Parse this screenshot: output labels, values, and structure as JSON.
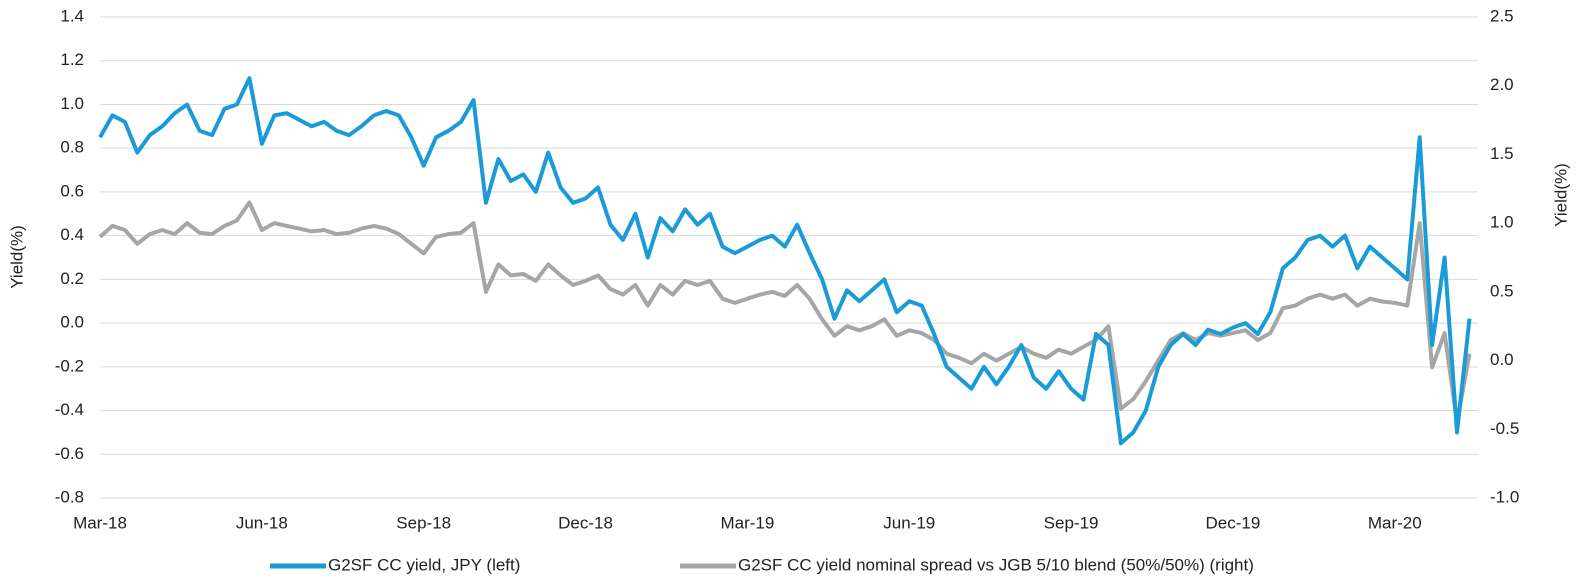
{
  "chart_data": {
    "type": "line",
    "y_label": "Yield(%)",
    "y2_label": "Yield(%)",
    "categories": [
      "Mar-18",
      null,
      null,
      null,
      null,
      null,
      null,
      null,
      null,
      null,
      null,
      null,
      null,
      "Jun-18",
      null,
      null,
      null,
      null,
      null,
      null,
      null,
      null,
      null,
      null,
      null,
      null,
      "Sep-18",
      null,
      null,
      null,
      null,
      null,
      null,
      null,
      null,
      null,
      null,
      null,
      null,
      "Dec-18",
      null,
      null,
      null,
      null,
      null,
      null,
      null,
      null,
      null,
      null,
      null,
      null,
      "Mar-19",
      null,
      null,
      null,
      null,
      null,
      null,
      null,
      null,
      null,
      null,
      null,
      null,
      "Jun-19",
      null,
      null,
      null,
      null,
      null,
      null,
      null,
      null,
      null,
      null,
      null,
      null,
      "Sep-19",
      null,
      null,
      null,
      null,
      null,
      null,
      null,
      null,
      null,
      null,
      null,
      null,
      "Dec-19",
      null,
      null,
      null,
      null,
      null,
      null,
      null,
      null,
      null,
      null,
      null,
      null,
      "Mar-20",
      null,
      null,
      null,
      null,
      null,
      null
    ],
    "series": [
      {
        "name": "G2SF CC yield, JPY (left)",
        "color": "#1a9bd7",
        "axis": "y",
        "values": [
          0.85,
          0.95,
          0.92,
          0.78,
          0.86,
          0.9,
          0.96,
          1.0,
          0.88,
          0.86,
          0.98,
          1.0,
          1.12,
          0.82,
          0.95,
          0.96,
          0.93,
          0.9,
          0.92,
          0.88,
          0.86,
          0.9,
          0.95,
          0.97,
          0.95,
          0.85,
          0.72,
          0.85,
          0.88,
          0.92,
          1.02,
          0.55,
          0.75,
          0.65,
          0.68,
          0.6,
          0.78,
          0.62,
          0.55,
          0.57,
          0.62,
          0.45,
          0.38,
          0.5,
          0.3,
          0.48,
          0.42,
          0.52,
          0.45,
          0.5,
          0.35,
          0.32,
          0.35,
          0.38,
          0.4,
          0.35,
          0.45,
          0.32,
          0.2,
          0.02,
          0.15,
          0.1,
          0.15,
          0.2,
          0.05,
          0.1,
          0.08,
          -0.05,
          -0.2,
          -0.25,
          -0.3,
          -0.2,
          -0.28,
          -0.2,
          -0.1,
          -0.25,
          -0.3,
          -0.22,
          -0.3,
          -0.35,
          -0.05,
          -0.1,
          -0.55,
          -0.5,
          -0.4,
          -0.2,
          -0.1,
          -0.05,
          -0.1,
          -0.03,
          -0.05,
          -0.02,
          0.0,
          -0.05,
          0.05,
          0.25,
          0.3,
          0.38,
          0.4,
          0.35,
          0.4,
          0.25,
          0.35,
          0.3,
          0.25,
          0.2,
          0.85,
          -0.1,
          0.3,
          -0.5,
          0.02
        ]
      },
      {
        "name": "G2SF CC yield nominal spread vs JGB 5/10 blend (50%/50%) (right)",
        "color": "#a6a6a6",
        "axis": "y2",
        "values": [
          0.9,
          0.98,
          0.95,
          0.85,
          0.92,
          0.95,
          0.92,
          1.0,
          0.93,
          0.92,
          0.98,
          1.02,
          1.15,
          0.95,
          1.0,
          0.98,
          0.96,
          0.94,
          0.95,
          0.92,
          0.93,
          0.96,
          0.98,
          0.96,
          0.92,
          0.85,
          0.78,
          0.9,
          0.92,
          0.93,
          1.0,
          0.5,
          0.7,
          0.62,
          0.63,
          0.58,
          0.7,
          0.62,
          0.55,
          0.58,
          0.62,
          0.52,
          0.48,
          0.55,
          0.4,
          0.55,
          0.48,
          0.58,
          0.55,
          0.58,
          0.45,
          0.42,
          0.45,
          0.48,
          0.5,
          0.47,
          0.55,
          0.45,
          0.3,
          0.18,
          0.25,
          0.22,
          0.25,
          0.3,
          0.18,
          0.22,
          0.2,
          0.15,
          0.05,
          0.02,
          -0.02,
          0.05,
          0.0,
          0.05,
          0.1,
          0.05,
          0.02,
          0.08,
          0.05,
          0.1,
          0.15,
          0.25,
          -0.35,
          -0.28,
          -0.15,
          0.0,
          0.15,
          0.2,
          0.15,
          0.2,
          0.18,
          0.2,
          0.22,
          0.15,
          0.2,
          0.38,
          0.4,
          0.45,
          0.48,
          0.45,
          0.48,
          0.4,
          0.45,
          0.43,
          0.42,
          0.4,
          1.0,
          -0.05,
          0.2,
          -0.45,
          0.05
        ]
      }
    ],
    "ylim": [
      -0.8,
      1.4
    ],
    "yticks": [
      -0.8,
      -0.6,
      -0.4,
      -0.2,
      {
        "value": 0,
        "label": "0.0"
      },
      0.2,
      0.4,
      0.6,
      0.8,
      {
        "value": 1,
        "label": "1.0"
      },
      1.2,
      1.4
    ],
    "y2lim": [
      -1,
      2.5
    ],
    "y2ticks": [
      {
        "value": -1,
        "label": "-1.0"
      },
      -0.5,
      {
        "value": 0,
        "label": "0.0"
      },
      0.5,
      {
        "value": 1,
        "label": "1.0"
      },
      1.5,
      {
        "value": 2,
        "label": "2.0"
      },
      2.5
    ],
    "grid": true,
    "legend": "bottom"
  }
}
